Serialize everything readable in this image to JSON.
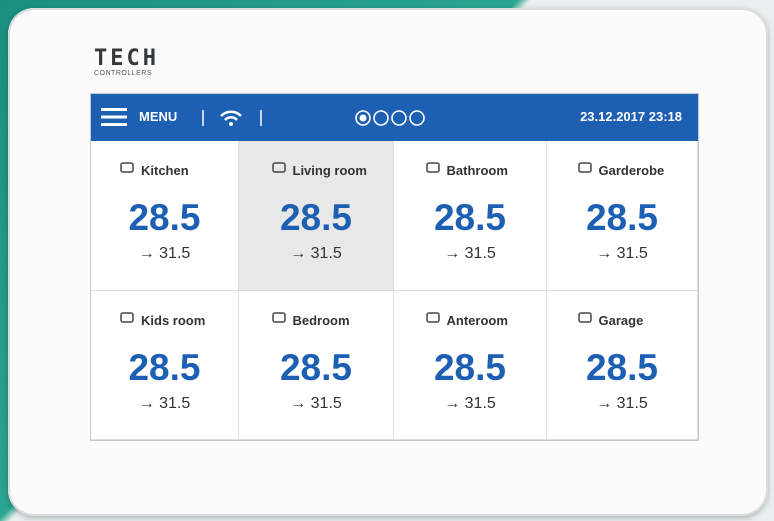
{
  "header": {
    "brand": "TECH",
    "subtitle": "CONTROLLERS"
  },
  "status_bar": {
    "menu": "MENU",
    "datetime": "23.12.2017 23:18"
  },
  "rooms": [
    {
      "name": "Kitchen",
      "temperature": "28.5",
      "setpoint": "→ 31.5"
    },
    {
      "name": "Living room",
      "temperature": "28.5",
      "setpoint": "→ 31.5",
      "selected": true
    },
    {
      "name": "Bathroom",
      "temperature": "28.5",
      "setpoint": "→ 31.5"
    },
    {
      "name": "Garderobe",
      "temperature": "28.5",
      "setpoint": "→ 31.5"
    },
    {
      "name": "Kids room",
      "temperature": "28.5",
      "setpoint": "→ 31.5"
    },
    {
      "name": "Bedroom",
      "temperature": "28.5",
      "setpoint": "→ 31.5"
    },
    {
      "name": "Anteroom",
      "temperature": "28.5",
      "setpoint": "→ 31.5"
    },
    {
      "name": "Garage",
      "temperature": "28.5",
      "setpoint": "→ 31.5"
    }
  ]
}
